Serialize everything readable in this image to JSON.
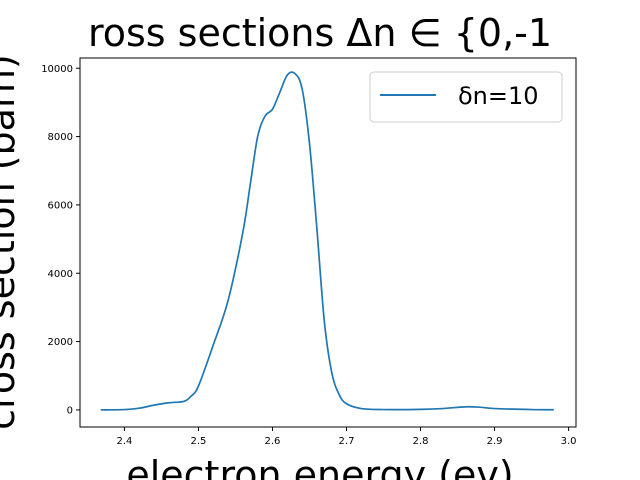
{
  "chart_data": {
    "type": "line",
    "title": "ross sections Δn ∈ {0,-1",
    "xlabel": "electron energy (ev)",
    "ylabel": "cross section (barn)",
    "xlim": [
      2.34,
      3.01
    ],
    "ylim": [
      -500,
      10300
    ],
    "xticks": [
      2.4,
      2.5,
      2.6,
      2.7,
      2.8,
      2.9,
      3.0
    ],
    "xtick_labels": [
      "2.4",
      "2.5",
      "2.6",
      "2.7",
      "2.8",
      "2.9",
      "3.0"
    ],
    "yticks": [
      0,
      2000,
      4000,
      6000,
      8000,
      10000
    ],
    "ytick_labels": [
      "0",
      "2000",
      "4000",
      "6000",
      "8000",
      "10000"
    ],
    "grid": false,
    "legend_position": "top-right",
    "series": [
      {
        "name": "δn=10",
        "color": "#1f77b4",
        "x": [
          2.368,
          2.4,
          2.42,
          2.44,
          2.46,
          2.48,
          2.49,
          2.5,
          2.52,
          2.54,
          2.56,
          2.57,
          2.58,
          2.59,
          2.6,
          2.61,
          2.62,
          2.63,
          2.64,
          2.65,
          2.66,
          2.67,
          2.68,
          2.69,
          2.7,
          2.72,
          2.75,
          2.8,
          2.83,
          2.86,
          2.88,
          2.9,
          2.95,
          2.98
        ],
        "y": [
          0,
          10,
          50,
          140,
          210,
          250,
          400,
          700,
          1900,
          3200,
          5200,
          6600,
          8000,
          8600,
          8800,
          9300,
          9800,
          9850,
          9400,
          7800,
          5300,
          2600,
          1100,
          450,
          180,
          40,
          10,
          15,
          40,
          90,
          80,
          40,
          10,
          5
        ]
      }
    ]
  }
}
